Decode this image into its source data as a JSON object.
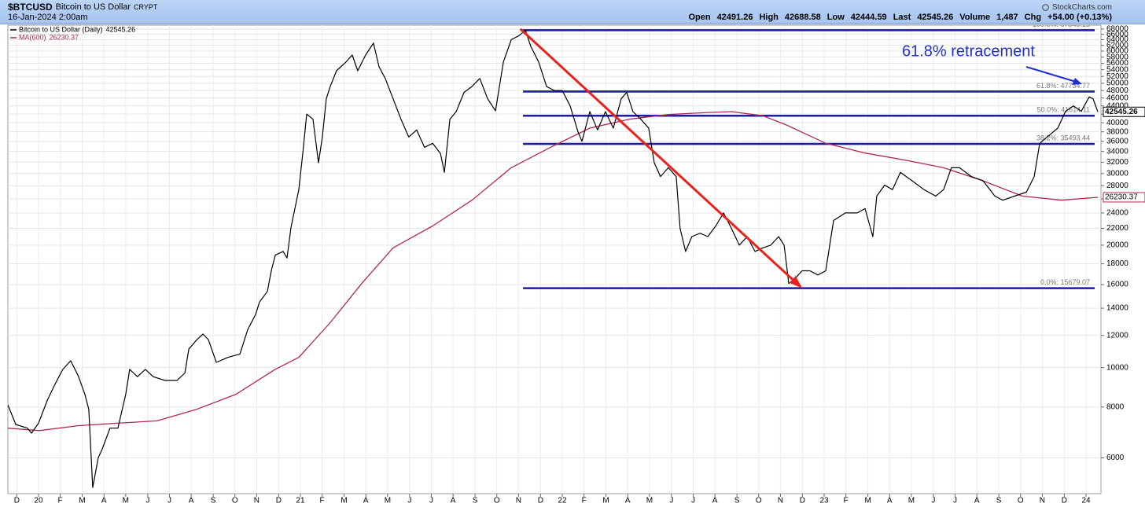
{
  "chart_data": {
    "type": "line",
    "header": {
      "symbol": "$BTCUSD",
      "name": "Bitcoin to US Dollar",
      "exchange": "CRYPT",
      "date": "16-Jan-2024 2:00am",
      "source": "StockCharts.com",
      "quote": [
        [
          "Open",
          "42491.26"
        ],
        [
          "High",
          "42688.58"
        ],
        [
          "Low",
          "42444.59"
        ],
        [
          "Last",
          "42545.26"
        ],
        [
          "Volume",
          "1,487"
        ],
        [
          "Chg",
          "+54.00 (+0.13%)"
        ]
      ]
    },
    "log_scale": true,
    "grid": true,
    "yaxis_position": "right",
    "xlim": [
      2019.883,
      2024.057
    ],
    "ylim": [
      4900,
      69500
    ],
    "yticks": [
      6000,
      8000,
      10000,
      12000,
      14000,
      16000,
      18000,
      20000,
      22000,
      24000,
      26000,
      28000,
      30000,
      32000,
      34000,
      36000,
      38000,
      40000,
      42000,
      44000,
      46000,
      48000,
      50000,
      52000,
      54000,
      56000,
      58000,
      60000,
      62000,
      64000,
      66000,
      68000
    ],
    "xticks": [
      {
        "value": 2019.917,
        "label": "D"
      },
      {
        "value": 2020,
        "label": "20"
      },
      {
        "value": 2020.083,
        "label": "F"
      },
      {
        "value": 2020.167,
        "label": "M"
      },
      {
        "value": 2020.25,
        "label": "A"
      },
      {
        "value": 2020.333,
        "label": "M"
      },
      {
        "value": 2020.417,
        "label": "J"
      },
      {
        "value": 2020.5,
        "label": "J"
      },
      {
        "value": 2020.583,
        "label": "A"
      },
      {
        "value": 2020.667,
        "label": "S"
      },
      {
        "value": 2020.75,
        "label": "O"
      },
      {
        "value": 2020.833,
        "label": "N"
      },
      {
        "value": 2020.917,
        "label": "D"
      },
      {
        "value": 2021,
        "label": "21"
      },
      {
        "value": 2021.083,
        "label": "F"
      },
      {
        "value": 2021.167,
        "label": "M"
      },
      {
        "value": 2021.25,
        "label": "A"
      },
      {
        "value": 2021.333,
        "label": "M"
      },
      {
        "value": 2021.417,
        "label": "J"
      },
      {
        "value": 2021.5,
        "label": "J"
      },
      {
        "value": 2021.583,
        "label": "A"
      },
      {
        "value": 2021.667,
        "label": "S"
      },
      {
        "value": 2021.75,
        "label": "O"
      },
      {
        "value": 2021.833,
        "label": "N"
      },
      {
        "value": 2021.917,
        "label": "D"
      },
      {
        "value": 2022,
        "label": "22"
      },
      {
        "value": 2022.083,
        "label": "F"
      },
      {
        "value": 2022.167,
        "label": "M"
      },
      {
        "value": 2022.25,
        "label": "A"
      },
      {
        "value": 2022.333,
        "label": "M"
      },
      {
        "value": 2022.417,
        "label": "J"
      },
      {
        "value": 2022.5,
        "label": "J"
      },
      {
        "value": 2022.583,
        "label": "A"
      },
      {
        "value": 2022.667,
        "label": "S"
      },
      {
        "value": 2022.75,
        "label": "O"
      },
      {
        "value": 2022.833,
        "label": "N"
      },
      {
        "value": 2022.917,
        "label": "D"
      },
      {
        "value": 2023,
        "label": "23"
      },
      {
        "value": 2023.083,
        "label": "F"
      },
      {
        "value": 2023.167,
        "label": "M"
      },
      {
        "value": 2023.25,
        "label": "A"
      },
      {
        "value": 2023.333,
        "label": "M"
      },
      {
        "value": 2023.417,
        "label": "J"
      },
      {
        "value": 2023.5,
        "label": "J"
      },
      {
        "value": 2023.583,
        "label": "A"
      },
      {
        "value": 2023.667,
        "label": "S"
      },
      {
        "value": 2023.75,
        "label": "O"
      },
      {
        "value": 2023.833,
        "label": "N"
      },
      {
        "value": 2023.917,
        "label": "D"
      },
      {
        "value": 2024,
        "label": "24"
      }
    ],
    "series": [
      {
        "name": "Bitcoin to US Dollar (Daily)",
        "color": "#000000",
        "x": [
          2019.883,
          2019.913,
          2019.958,
          2019.973,
          2020.0,
          2020.033,
          2020.063,
          2020.093,
          2020.123,
          2020.153,
          2020.177,
          2020.192,
          2020.207,
          2020.228,
          2020.243,
          2020.273,
          2020.303,
          2020.333,
          2020.348,
          2020.378,
          2020.408,
          2020.438,
          2020.483,
          2020.529,
          2020.559,
          2020.574,
          2020.604,
          2020.628,
          2020.649,
          2020.679,
          2020.724,
          2020.769,
          2020.799,
          2020.829,
          2020.844,
          2020.874,
          2020.889,
          2020.904,
          2020.934,
          2020.949,
          2020.964,
          2020.994,
          2021.009,
          2021.024,
          2021.048,
          2021.069,
          2021.084,
          2021.099,
          2021.114,
          2021.138,
          2021.174,
          2021.198,
          2021.219,
          2021.249,
          2021.279,
          2021.3,
          2021.324,
          2021.354,
          2021.384,
          2021.414,
          2021.444,
          2021.474,
          2021.505,
          2021.535,
          2021.55,
          2021.571,
          2021.595,
          2021.625,
          2021.655,
          2021.685,
          2021.715,
          2021.745,
          2021.775,
          2021.805,
          2021.835,
          2021.859,
          2021.88,
          2021.91,
          2021.94,
          2021.97,
          2022.0,
          2022.03,
          2022.06,
          2022.075,
          2022.105,
          2022.135,
          2022.165,
          2022.195,
          2022.225,
          2022.246,
          2022.27,
          2022.3,
          2022.33,
          2022.351,
          2022.375,
          2022.405,
          2022.435,
          2022.45,
          2022.471,
          2022.495,
          2022.526,
          2022.556,
          2022.586,
          2022.616,
          2022.646,
          2022.676,
          2022.706,
          2022.736,
          2022.766,
          2022.796,
          2022.826,
          2022.847,
          2022.865,
          2022.886,
          2022.916,
          2022.946,
          2022.976,
          2023.006,
          2023.036,
          2023.081,
          2023.126,
          2023.156,
          2023.186,
          2023.201,
          2023.231,
          2023.261,
          2023.291,
          2023.336,
          2023.381,
          2023.426,
          2023.456,
          2023.486,
          2023.517,
          2023.562,
          2023.607,
          2023.652,
          2023.682,
          2023.727,
          2023.772,
          2023.802,
          2023.823,
          2023.862,
          2023.892,
          2023.922,
          2023.952,
          2023.982,
          2024.012,
          2024.027,
          2024.045
        ],
        "values": [
          8100,
          7250,
          7100,
          6900,
          7300,
          8300,
          9100,
          9900,
          10400,
          9500,
          8600,
          7900,
          5070,
          6000,
          6300,
          7100,
          7100,
          8600,
          9900,
          9500,
          9900,
          9500,
          9300,
          9300,
          9700,
          11100,
          11700,
          12100,
          11700,
          10300,
          10600,
          10800,
          12400,
          13500,
          14500,
          15400,
          17300,
          18900,
          19300,
          18600,
          22100,
          27400,
          33600,
          42000,
          40800,
          31900,
          36900,
          45800,
          49100,
          53700,
          56400,
          58700,
          53700,
          58700,
          62800,
          55000,
          51400,
          45800,
          40800,
          36900,
          38400,
          34800,
          35600,
          33600,
          30200,
          40800,
          42600,
          47500,
          49100,
          51400,
          45800,
          42800,
          56400,
          64000,
          65500,
          67500,
          61600,
          56400,
          49100,
          48000,
          48000,
          44000,
          38000,
          36000,
          42600,
          38400,
          42600,
          38800,
          45800,
          47500,
          42600,
          40800,
          38800,
          31900,
          29500,
          31000,
          29500,
          22000,
          19300,
          21000,
          21400,
          21000,
          22300,
          24000,
          22000,
          20000,
          21000,
          19300,
          19700,
          20000,
          21000,
          20000,
          16100,
          16500,
          17300,
          17300,
          16900,
          17300,
          23000,
          24000,
          24000,
          24600,
          21000,
          26400,
          28100,
          27400,
          30200,
          28800,
          27400,
          26400,
          27400,
          31000,
          31000,
          29500,
          28800,
          26400,
          25800,
          26400,
          27000,
          29500,
          35600,
          37400,
          38800,
          42700,
          44000,
          42700,
          46300,
          45800,
          42545.26
        ]
      },
      {
        "name": "MA(600)",
        "color": "#b02a4a",
        "x": [
          2019.883,
          2020.003,
          2020.153,
          2020.303,
          2020.453,
          2020.604,
          2020.754,
          2020.904,
          2020.994,
          2021.114,
          2021.234,
          2021.354,
          2021.505,
          2021.655,
          2021.805,
          2021.955,
          2022.105,
          2022.255,
          2022.405,
          2022.556,
          2022.646,
          2022.766,
          2022.856,
          2023.006,
          2023.156,
          2023.306,
          2023.456,
          2023.607,
          2023.757,
          2023.907,
          2024.045
        ],
        "values": [
          7100,
          7000,
          7200,
          7300,
          7400,
          7900,
          8600,
          9900,
          10600,
          12900,
          16100,
          19700,
          22300,
          25800,
          31000,
          34800,
          38800,
          40800,
          41900,
          42400,
          42600,
          41600,
          39500,
          35600,
          33700,
          32400,
          31000,
          28800,
          26400,
          25800,
          26230.37
        ]
      }
    ],
    "retracement": {
      "color": "#1c1ca8",
      "x": [
        2021.85,
        2024.033
      ],
      "levels": [
        67549.15,
        47734.77,
        41614.11,
        35493.44,
        15679.07
      ],
      "labels": [
        "100.0%: 67549.15",
        "61.8%: 47734.77",
        "50.0%: 41614.11",
        "38.2%: 35493.44",
        "0.0%: 15679.07"
      ]
    },
    "trendline": {
      "color": "#e8231e",
      "x": [
        2021.84,
        2022.91
      ],
      "y": [
        68000,
        15800
      ]
    },
    "annotation": {
      "text": "61.8% retracement",
      "color": "#1f2fd6"
    }
  }
}
